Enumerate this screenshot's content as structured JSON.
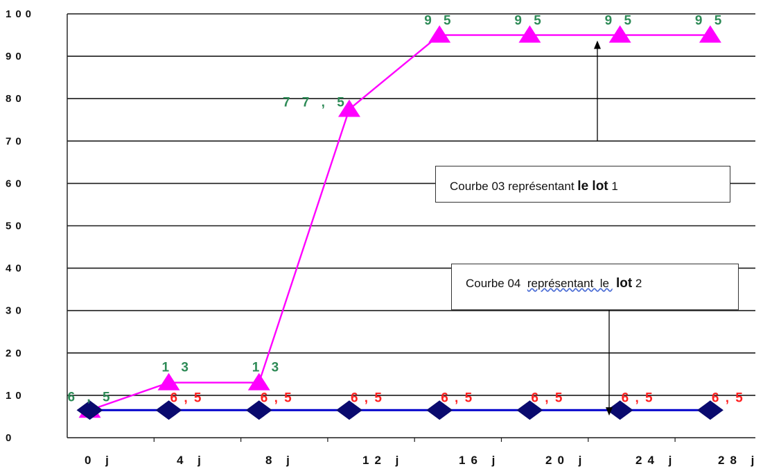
{
  "chart_data": {
    "type": "line",
    "title": "",
    "xlabel": "",
    "ylabel": "",
    "ylim": [
      0,
      100
    ],
    "yticks": [
      "0",
      "10",
      "20",
      "30",
      "40",
      "50",
      "60",
      "70",
      "80",
      "90",
      "100"
    ],
    "categories": [
      "0 j",
      "4 j",
      "8 j",
      "12 j",
      "16 j",
      "20 j",
      "24 j",
      "28 j"
    ],
    "grid": true,
    "legend": "none",
    "series": [
      {
        "color": "#ff00ff",
        "marker": "triangle",
        "x": [
          1,
          4.5,
          8.5,
          12.5,
          16.5,
          20.5,
          24.5,
          28.5
        ],
        "values": [
          6.5,
          13,
          13,
          77.5,
          95,
          95,
          95,
          95
        ],
        "labels": [
          "6 , 5",
          "1 3",
          "1 3",
          "7 7 , 5",
          "9 5",
          "9 5",
          "9 5",
          "9 5"
        ],
        "label_color": "#2e8b57"
      },
      {
        "color": "#0000cc",
        "marker_color": "#0a0a6e",
        "marker": "diamond",
        "x": [
          1,
          4.5,
          8.5,
          12.5,
          16.5,
          20.5,
          24.5,
          28.5
        ],
        "values": [
          6.5,
          6.5,
          6.5,
          6.5,
          6.5,
          6.5,
          6.5,
          6.5
        ],
        "labels": [
          "6 , 5",
          "6 , 5",
          "6 , 5",
          "6 , 5",
          "6 , 5",
          "6 , 5",
          "6 , 5",
          "6 , 5"
        ],
        "label_color": "#ff2020"
      }
    ],
    "annotations": [
      {
        "text_parts": [
          {
            "text": "Courbe 03 représentant ",
            "style": "normal"
          },
          {
            "text": "le lot",
            "style": "bold"
          },
          {
            "text": " 1",
            "style": "normal"
          }
        ],
        "points_to_series": 0,
        "arrow_x": 23.6,
        "arrow_y": 95
      },
      {
        "text_parts": [
          {
            "text": "Courbe 04  ",
            "style": "normal"
          },
          {
            "text": "représentant  le ",
            "style": "spell"
          },
          {
            "text": " lot",
            "style": "bold"
          },
          {
            "text": " 2",
            "style": "normal"
          }
        ],
        "points_to_series": 1,
        "arrow_x": 24,
        "arrow_y": 7.5
      }
    ]
  }
}
